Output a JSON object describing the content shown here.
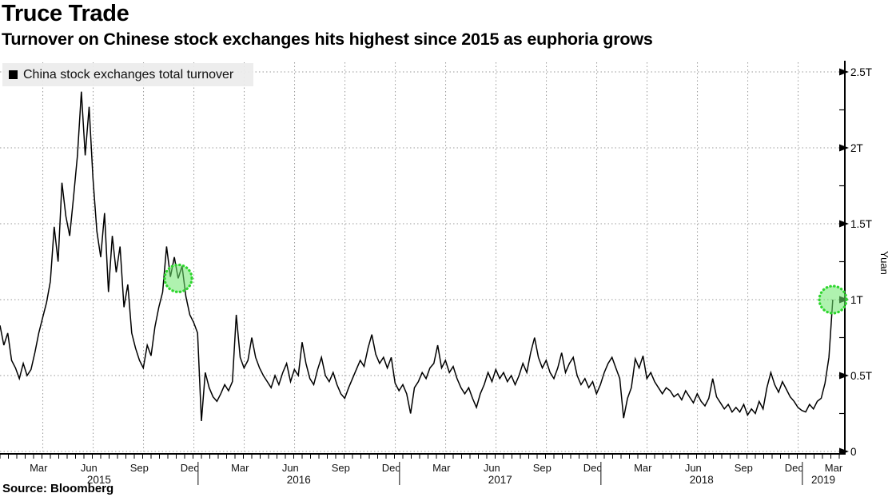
{
  "colors": {
    "line": "#000000",
    "grid": "#9a9a9a",
    "axis": "#000000",
    "legend_bg": "#ececec",
    "highlight_fill": "#6ee86e",
    "highlight_stroke": "#2ed52e"
  },
  "source": {
    "label": "Source: Bloomberg"
  },
  "chart_data": {
    "type": "line",
    "title": "Truce Trade",
    "subtitle": "Turnover on Chinese stock exchanges hits highest since 2015 as euphoria grows",
    "legend_position": "top-left",
    "grid": "dotted",
    "y_axis": {
      "title": "Yuan",
      "side": "right",
      "min": 0,
      "max": 2.5,
      "ticks": [
        {
          "value": 0,
          "label": "0"
        },
        {
          "value": 0.5,
          "label": "0.5T"
        },
        {
          "value": 1,
          "label": "1T"
        },
        {
          "value": 1.5,
          "label": "1.5T"
        },
        {
          "value": 2,
          "label": "2T"
        },
        {
          "value": 2.5,
          "label": "2.5T"
        }
      ],
      "minor_tick_values": [
        0.25,
        0.75,
        1.25,
        1.75,
        2.25
      ]
    },
    "x_axis": {
      "start": "2015-01",
      "end": "2019-03",
      "month_tick_labels": [
        {
          "month": 2,
          "label": "Mar"
        },
        {
          "month": 5,
          "label": "Jun"
        },
        {
          "month": 8,
          "label": "Sep"
        },
        {
          "month": 11,
          "label": "Dec"
        },
        {
          "month": 14,
          "label": "Mar"
        },
        {
          "month": 17,
          "label": "Jun"
        },
        {
          "month": 20,
          "label": "Sep"
        },
        {
          "month": 23,
          "label": "Dec"
        },
        {
          "month": 26,
          "label": "Mar"
        },
        {
          "month": 29,
          "label": "Jun"
        },
        {
          "month": 32,
          "label": "Sep"
        },
        {
          "month": 35,
          "label": "Dec"
        },
        {
          "month": 38,
          "label": "Mar"
        },
        {
          "month": 41,
          "label": "Jun"
        },
        {
          "month": 44,
          "label": "Sep"
        },
        {
          "month": 47,
          "label": "Dec"
        },
        {
          "month": 50,
          "label": "Mar"
        }
      ],
      "year_labels": [
        {
          "label": "2015",
          "start_month": 0,
          "end_month": 11.8
        },
        {
          "label": "2016",
          "start_month": 11.8,
          "end_month": 23.8
        },
        {
          "label": "2017",
          "start_month": 23.8,
          "end_month": 35.8
        },
        {
          "label": "2018",
          "start_month": 35.8,
          "end_month": 47.8
        },
        {
          "label": "2019",
          "start_month": 47.8,
          "end_month": 50.3
        }
      ],
      "year_divider_months": [
        11.8,
        23.8,
        35.8,
        47.8
      ]
    },
    "series": [
      {
        "name": "China stock exchanges total turnover",
        "color": "#000000",
        "unit": "trillion yuan",
        "start_month": 0,
        "months_per_point": 0.230769,
        "values": [
          0.83,
          0.7,
          0.78,
          0.6,
          0.55,
          0.48,
          0.58,
          0.5,
          0.54,
          0.65,
          0.78,
          0.88,
          0.98,
          1.12,
          1.48,
          1.25,
          1.77,
          1.55,
          1.42,
          1.68,
          1.95,
          2.37,
          1.95,
          2.27,
          1.8,
          1.45,
          1.28,
          1.57,
          1.05,
          1.42,
          1.18,
          1.35,
          0.95,
          1.1,
          0.78,
          0.68,
          0.6,
          0.55,
          0.7,
          0.63,
          0.82,
          0.95,
          1.05,
          1.35,
          1.15,
          1.28,
          1.14,
          1.22,
          1.02,
          0.9,
          0.85,
          0.78,
          0.2,
          0.52,
          0.42,
          0.36,
          0.33,
          0.38,
          0.44,
          0.4,
          0.46,
          0.9,
          0.62,
          0.55,
          0.6,
          0.75,
          0.62,
          0.55,
          0.5,
          0.46,
          0.42,
          0.5,
          0.44,
          0.52,
          0.58,
          0.46,
          0.54,
          0.5,
          0.72,
          0.58,
          0.48,
          0.44,
          0.54,
          0.62,
          0.5,
          0.46,
          0.52,
          0.44,
          0.38,
          0.35,
          0.42,
          0.48,
          0.54,
          0.6,
          0.56,
          0.68,
          0.77,
          0.64,
          0.58,
          0.62,
          0.55,
          0.62,
          0.45,
          0.4,
          0.44,
          0.38,
          0.25,
          0.42,
          0.46,
          0.52,
          0.48,
          0.55,
          0.58,
          0.7,
          0.55,
          0.6,
          0.52,
          0.56,
          0.48,
          0.42,
          0.38,
          0.42,
          0.35,
          0.29,
          0.38,
          0.44,
          0.52,
          0.46,
          0.54,
          0.48,
          0.52,
          0.46,
          0.5,
          0.44,
          0.5,
          0.58,
          0.52,
          0.65,
          0.75,
          0.62,
          0.55,
          0.6,
          0.52,
          0.48,
          0.55,
          0.65,
          0.52,
          0.58,
          0.62,
          0.5,
          0.44,
          0.48,
          0.42,
          0.46,
          0.38,
          0.44,
          0.52,
          0.58,
          0.62,
          0.55,
          0.48,
          0.22,
          0.35,
          0.42,
          0.61,
          0.55,
          0.63,
          0.48,
          0.52,
          0.46,
          0.42,
          0.38,
          0.42,
          0.4,
          0.36,
          0.38,
          0.34,
          0.4,
          0.36,
          0.32,
          0.38,
          0.33,
          0.3,
          0.35,
          0.48,
          0.36,
          0.32,
          0.28,
          0.31,
          0.26,
          0.29,
          0.26,
          0.31,
          0.24,
          0.28,
          0.25,
          0.33,
          0.28,
          0.42,
          0.52,
          0.44,
          0.39,
          0.46,
          0.41,
          0.36,
          0.33,
          0.29,
          0.27,
          0.26,
          0.31,
          0.28,
          0.33,
          0.35,
          0.45,
          0.62,
          1.0
        ]
      }
    ],
    "annotations": [
      {
        "type": "highlight-circle",
        "month": 10.62,
        "value": 1.14,
        "radius_px": 17
      },
      {
        "type": "highlight-circle",
        "month": 49.62,
        "value": 1.0,
        "radius_px": 17
      }
    ]
  }
}
